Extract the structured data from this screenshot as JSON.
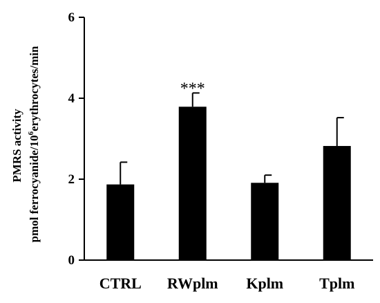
{
  "chart_data": {
    "type": "bar",
    "categories": [
      "CTRL",
      "RWplm",
      "Kplm",
      "Tplm"
    ],
    "values": [
      1.87,
      3.79,
      1.91,
      2.82
    ],
    "errors": [
      0.55,
      0.34,
      0.19,
      0.7
    ],
    "significance": [
      "",
      "***",
      "",
      ""
    ],
    "ylabel_line1": "PMRS activity",
    "ylabel_line2_pre": "pmol ferrocyanide/10",
    "ylabel_line2_sup": "6",
    "ylabel_line2_post": "erythrocytes/min",
    "ylim": [
      0,
      6
    ],
    "yticks": [
      "0",
      "2",
      "4",
      "6"
    ],
    "bar_color": "#000000",
    "grid": false
  }
}
